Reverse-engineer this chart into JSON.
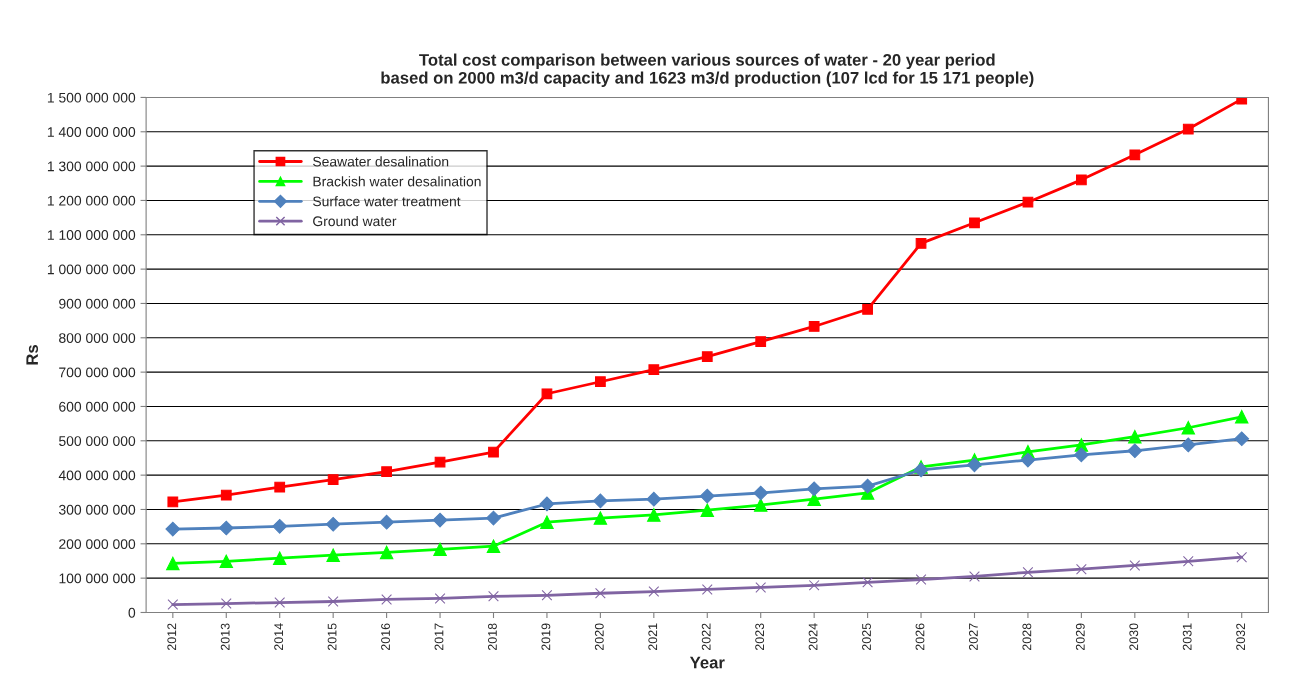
{
  "chart_data": {
    "type": "line",
    "title": "Total cost comparison between various sources of water - 20 year period\nbased on 2000 m3/d capacity and 1623 m3/d production (107 lcd for 15 171 people)",
    "xlabel": "Year",
    "ylabel": "Rs",
    "categories": [
      "2012",
      "2013",
      "2014",
      "2015",
      "2016",
      "2017",
      "2018",
      "2019",
      "2020",
      "2021",
      "2022",
      "2023",
      "2024",
      "2025",
      "2026",
      "2027",
      "2028",
      "2029",
      "2030",
      "2031",
      "2032"
    ],
    "series": [
      {
        "name": "Seawater desalination",
        "color": "#ff0000",
        "marker": "square",
        "values": [
          322000000,
          342000000,
          365000000,
          387000000,
          410000000,
          438000000,
          467000000,
          637000000,
          672000000,
          707000000,
          745000000,
          789000000,
          833000000,
          883000000,
          1075000000,
          1135000000,
          1195000000,
          1260000000,
          1333000000,
          1408000000,
          1495000000
        ]
      },
      {
        "name": "Brackish water desalination",
        "color": "#00ff00",
        "marker": "triangle",
        "values": [
          143000000,
          149000000,
          158000000,
          167000000,
          175000000,
          184000000,
          193000000,
          263000000,
          275000000,
          284000000,
          298000000,
          313000000,
          330000000,
          348000000,
          424000000,
          444000000,
          468000000,
          488000000,
          512000000,
          538000000,
          570000000
        ]
      },
      {
        "name": "Surface water treatment",
        "color": "#4f81bd",
        "marker": "diamond",
        "values": [
          243000000,
          246000000,
          251000000,
          257000000,
          263000000,
          269000000,
          275000000,
          316000000,
          325000000,
          330000000,
          339000000,
          348000000,
          360000000,
          368000000,
          415000000,
          430000000,
          444000000,
          459000000,
          471000000,
          488000000,
          506000000
        ]
      },
      {
        "name": "Ground water",
        "color": "#8064a2",
        "marker": "cross",
        "values": [
          23000000,
          26000000,
          29000000,
          32000000,
          38000000,
          41000000,
          47000000,
          50000000,
          56000000,
          61000000,
          67000000,
          73000000,
          79000000,
          88000000,
          96000000,
          105000000,
          117000000,
          126000000,
          137000000,
          149000000,
          161000000
        ]
      }
    ],
    "ylim": [
      0,
      1500000000
    ],
    "yticks": [
      {
        "value": 0,
        "label": "0"
      },
      {
        "value": 100000000,
        "label": "100 000 000"
      },
      {
        "value": 200000000,
        "label": "200 000 000"
      },
      {
        "value": 300000000,
        "label": "300 000 000"
      },
      {
        "value": 400000000,
        "label": "400 000 000"
      },
      {
        "value": 500000000,
        "label": "500 000 000"
      },
      {
        "value": 600000000,
        "label": "600 000 000"
      },
      {
        "value": 700000000,
        "label": "700 000 000"
      },
      {
        "value": 800000000,
        "label": "800 000 000"
      },
      {
        "value": 900000000,
        "label": "900 000 000"
      },
      {
        "value": 1000000000,
        "label": "1 000 000 000"
      },
      {
        "value": 1100000000,
        "label": "1 100 000 000"
      },
      {
        "value": 1200000000,
        "label": "1 200 000 000"
      },
      {
        "value": 1300000000,
        "label": "1 300 000 000"
      },
      {
        "value": 1400000000,
        "label": "1 400 000 000"
      },
      {
        "value": 1500000000,
        "label": "1 500 000 000"
      }
    ],
    "grid": "y",
    "legend": "top left"
  }
}
